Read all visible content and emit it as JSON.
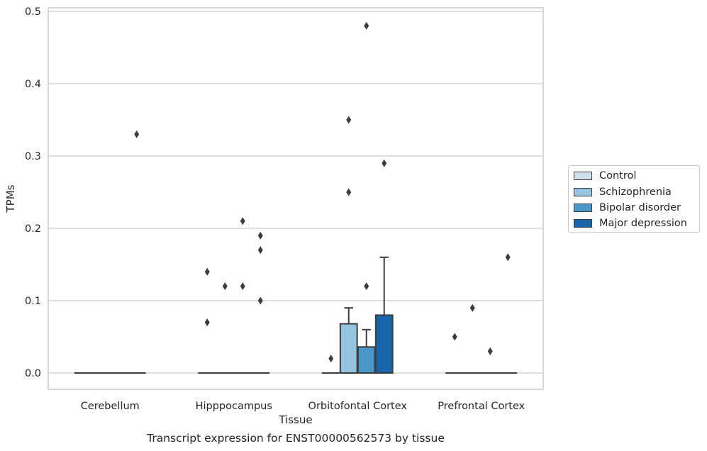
{
  "chart_data": {
    "type": "box",
    "title": "",
    "caption": "Transcript expression for ENST00000562573 by tissue",
    "xlabel": "Tissue",
    "ylabel": "TPMs",
    "ylim": [
      -0.023,
      0.505
    ],
    "yticks": [
      0.0,
      0.1,
      0.2,
      0.3,
      0.4,
      0.5
    ],
    "ytick_labels": [
      "0.0",
      "0.1",
      "0.2",
      "0.3",
      "0.4",
      "0.5"
    ],
    "grid": true,
    "legend_position": "right",
    "categories": [
      "Cerebellum",
      "Hipppocampus",
      "Orbitofontal Cortex",
      "Prefrontal Cortex"
    ],
    "series": [
      {
        "name": "Control",
        "color": "#d0e1f2",
        "boxes": [
          {
            "q1": 0,
            "median": 0,
            "q3": 0,
            "whislo": 0,
            "whishi": 0,
            "fliers": []
          },
          {
            "q1": 0,
            "median": 0,
            "q3": 0,
            "whislo": 0,
            "whishi": 0,
            "fliers": [
              0.14,
              0.07
            ]
          },
          {
            "q1": 0,
            "median": 0,
            "q3": 0,
            "whislo": 0,
            "whishi": 0,
            "fliers": [
              0.02
            ]
          },
          {
            "q1": 0,
            "median": 0,
            "q3": 0,
            "whislo": 0,
            "whishi": 0,
            "fliers": [
              0.05
            ]
          }
        ]
      },
      {
        "name": "Schizophrenia",
        "color": "#94c4df",
        "boxes": [
          {
            "q1": 0,
            "median": 0,
            "q3": 0,
            "whislo": 0,
            "whishi": 0,
            "fliers": []
          },
          {
            "q1": 0,
            "median": 0,
            "q3": 0,
            "whislo": 0,
            "whishi": 0,
            "fliers": [
              0.12
            ]
          },
          {
            "q1": 0,
            "median": 0,
            "q3": 0.068,
            "whislo": 0,
            "whishi": 0.09,
            "fliers": [
              0.35,
              0.25
            ]
          },
          {
            "q1": 0,
            "median": 0,
            "q3": 0,
            "whislo": 0,
            "whishi": 0,
            "fliers": [
              0.09
            ]
          }
        ]
      },
      {
        "name": "Bipolar disorder",
        "color": "#4a98c9",
        "boxes": [
          {
            "q1": 0,
            "median": 0,
            "q3": 0,
            "whislo": 0,
            "whishi": 0,
            "fliers": []
          },
          {
            "q1": 0,
            "median": 0,
            "q3": 0,
            "whislo": 0,
            "whishi": 0,
            "fliers": [
              0.21,
              0.12
            ]
          },
          {
            "q1": 0,
            "median": 0,
            "q3": 0.036,
            "whislo": 0,
            "whishi": 0.06,
            "fliers": [
              0.48,
              0.12
            ]
          },
          {
            "q1": 0,
            "median": 0,
            "q3": 0,
            "whislo": 0,
            "whishi": 0,
            "fliers": [
              0.03
            ]
          }
        ]
      },
      {
        "name": "Major depression",
        "color": "#1764ab",
        "boxes": [
          {
            "q1": 0,
            "median": 0,
            "q3": 0,
            "whislo": 0,
            "whishi": 0,
            "fliers": [
              0.33
            ]
          },
          {
            "q1": 0,
            "median": 0,
            "q3": 0,
            "whislo": 0,
            "whishi": 0,
            "fliers": [
              0.19,
              0.17,
              0.1
            ]
          },
          {
            "q1": 0,
            "median": 0,
            "q3": 0.08,
            "whislo": 0,
            "whishi": 0.16,
            "fliers": [
              0.29
            ]
          },
          {
            "q1": 0,
            "median": 0,
            "q3": 0,
            "whislo": 0,
            "whishi": 0,
            "fliers": [
              0.16
            ]
          }
        ]
      }
    ]
  }
}
